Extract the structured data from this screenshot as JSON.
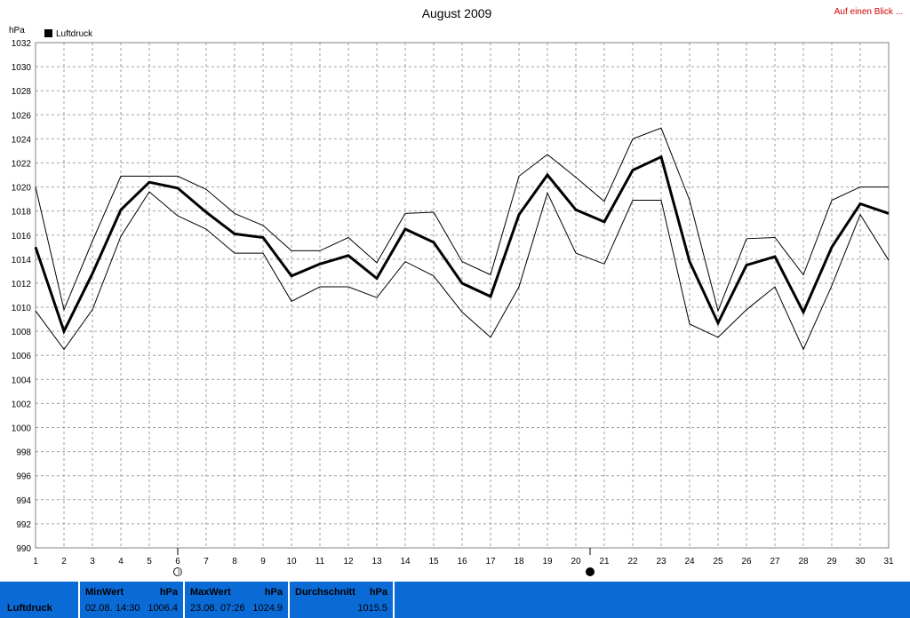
{
  "header": {
    "title": "August 2009",
    "link": "Auf einen Blick ..."
  },
  "chart_data": {
    "type": "line",
    "title": "August 2009",
    "ylabel": "hPa",
    "xlabel": "",
    "ylim": [
      990,
      1032
    ],
    "yticks": [
      990,
      992,
      994,
      996,
      998,
      1000,
      1002,
      1004,
      1006,
      1008,
      1010,
      1012,
      1014,
      1016,
      1018,
      1020,
      1022,
      1024,
      1026,
      1028,
      1030,
      1032
    ],
    "x": [
      1,
      2,
      3,
      4,
      5,
      6,
      7,
      8,
      9,
      10,
      11,
      12,
      13,
      14,
      15,
      16,
      17,
      18,
      19,
      20,
      21,
      22,
      23,
      24,
      25,
      26,
      27,
      28,
      29,
      30,
      31
    ],
    "legend": [
      {
        "name": "Luftdruck",
        "color": "#000000"
      }
    ],
    "legend_position": "top-left",
    "grid": true,
    "series": [
      {
        "name": "Luftdruck",
        "role": "max",
        "width": 1,
        "values": [
          1020.0,
          1009.8,
          1015.5,
          1020.9,
          1020.9,
          1020.9,
          1019.8,
          1017.8,
          1016.8,
          1014.7,
          1014.7,
          1015.8,
          1013.7,
          1017.8,
          1017.9,
          1013.8,
          1012.7,
          1020.9,
          1022.7,
          1020.8,
          1018.8,
          1024.0,
          1024.9,
          1018.9,
          1009.7,
          1015.7,
          1015.8,
          1012.7,
          1018.9,
          1020.0,
          1020.0
        ]
      },
      {
        "role": "mean",
        "width": 3,
        "values": [
          1015.0,
          1008.0,
          1012.8,
          1018.1,
          1020.4,
          1019.9,
          1017.9,
          1016.1,
          1015.8,
          1012.6,
          1013.6,
          1014.3,
          1012.4,
          1016.5,
          1015.4,
          1012.0,
          1010.9,
          1017.7,
          1021.0,
          1018.1,
          1017.1,
          1021.4,
          1022.5,
          1013.8,
          1008.7,
          1013.5,
          1014.2,
          1009.6,
          1015.0,
          1018.6,
          1017.8
        ]
      },
      {
        "role": "min",
        "width": 1,
        "values": [
          1009.7,
          1006.5,
          1009.8,
          1015.9,
          1019.6,
          1017.6,
          1016.5,
          1014.5,
          1014.5,
          1010.5,
          1011.7,
          1011.7,
          1010.8,
          1013.8,
          1012.6,
          1009.6,
          1007.5,
          1011.7,
          1019.5,
          1014.5,
          1013.6,
          1018.9,
          1018.9,
          1008.6,
          1007.5,
          1009.8,
          1011.7,
          1006.5,
          1011.8,
          1017.7,
          1013.9
        ]
      }
    ],
    "markers": [
      {
        "icon": "moon-first-quarter-icon",
        "x": 6
      },
      {
        "icon": "full-moon-icon",
        "x": 20.5
      }
    ]
  },
  "footer": {
    "label": "Luftdruck",
    "min": {
      "header": "MinWert",
      "unit": "hPa",
      "date": "02.08.",
      "time": "14:30",
      "value": "1006.4"
    },
    "max": {
      "header": "MaxWert",
      "unit": "hPa",
      "date": "23.08.",
      "time": "07:26",
      "value": "1024.9"
    },
    "avg": {
      "header": "Durchschnitt",
      "unit": "hPa",
      "value": "1015.5"
    }
  }
}
